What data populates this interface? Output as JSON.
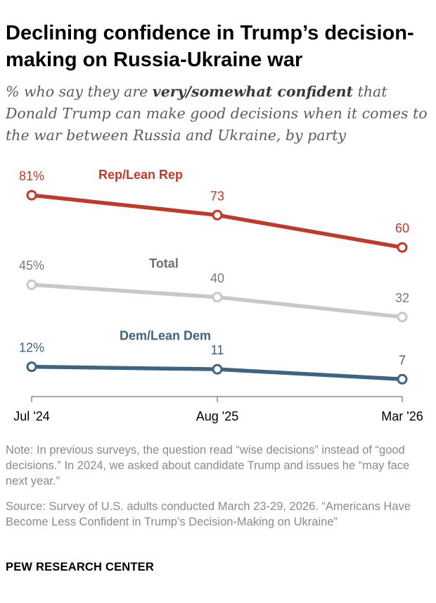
{
  "chart_data": {
    "type": "line",
    "title": "Declining confidence in Trump’s decision-making on Russia-Ukraine war",
    "subtitle_parts": {
      "before": "% who say they are ",
      "emphasis": "very/somewhat confident",
      "after": " that Donald Trump can make good decisions when it comes to the war between Russia and Ukraine, by party"
    },
    "categories": [
      "Jul '24",
      "Aug '25",
      "Mar '26"
    ],
    "ylim": [
      0,
      100
    ],
    "grid": false,
    "series": [
      {
        "name": "Rep/Lean Rep",
        "values": [
          81,
          73,
          60
        ],
        "labels": [
          "81%",
          "73",
          "60"
        ],
        "color": "#bf3a2b"
      },
      {
        "name": "Total",
        "values": [
          45,
          40,
          32
        ],
        "labels": [
          "45%",
          "40",
          "32"
        ],
        "color": "#c8c8c8",
        "label_color": "#7a7a7a",
        "name_color": "#6e6e6e"
      },
      {
        "name": "Dem/Lean Dem",
        "values": [
          12,
          11,
          7
        ],
        "labels": [
          "12%",
          "11",
          "7"
        ],
        "color": "#3d6480",
        "label_color": "#3d6480"
      }
    ]
  },
  "footer": {
    "note": "Note: In previous surveys, the question read “wise decisions” instead of “good decisions.” In 2024, we asked about candidate Trump and issues he “may face next year.”",
    "source": "Source: Survey of U.S. adults conducted March 23-29, 2026. “Americans Have Become Less Confident in Trump’s Decision-Making on Ukraine”",
    "brand": "PEW RESEARCH CENTER"
  }
}
